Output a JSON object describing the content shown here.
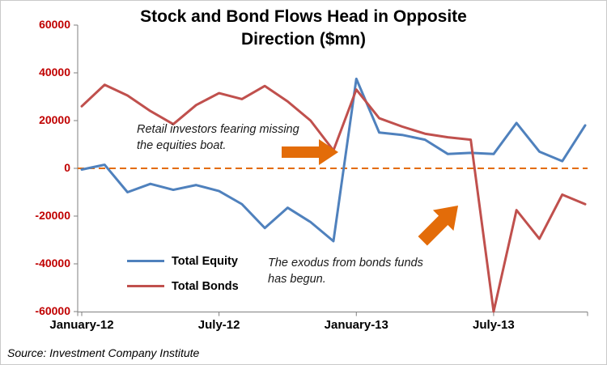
{
  "title_line1": "Stock and Bond Flows Head in Opposite",
  "title_line2": "Direction ($mn)",
  "source": "Source: Investment Company Institute",
  "colors": {
    "equity_line": "#4F81BD",
    "bonds_line": "#C0504D",
    "accent_orange": "#E36C09",
    "y_axis_label": "#C00000",
    "axis": "#7F7F7F",
    "text": "#000000"
  },
  "chart_data": {
    "type": "line",
    "title": "Stock and Bond Flows Head in Opposite Direction ($mn)",
    "xlabel": "",
    "ylabel": "",
    "ylim": [
      -60000,
      60000
    ],
    "y_ticks": [
      60000,
      40000,
      20000,
      0,
      -20000,
      -40000,
      -60000
    ],
    "grid": "off",
    "legend_position": "inside-lower-left",
    "x": [
      "Jan-12",
      "Feb-12",
      "Mar-12",
      "Apr-12",
      "May-12",
      "Jun-12",
      "Jul-12",
      "Aug-12",
      "Sep-12",
      "Oct-12",
      "Nov-12",
      "Dec-12",
      "Jan-13",
      "Feb-13",
      "Mar-13",
      "Apr-13",
      "May-13",
      "Jun-13",
      "Jul-13",
      "Aug-13",
      "Sep-13",
      "Oct-13",
      "Nov-13"
    ],
    "x_tick_positions": [
      0,
      6,
      12,
      18
    ],
    "x_tick_labels": [
      "January-12",
      "July-12",
      "January-13",
      "July-13"
    ],
    "series": [
      {
        "name": "Total Equity",
        "color": "#4F81BD",
        "values": [
          -500,
          1500,
          -10000,
          -6500,
          -9000,
          -7000,
          -9500,
          -15000,
          -25000,
          -16500,
          -22500,
          -30500,
          37500,
          15000,
          14000,
          12000,
          6000,
          6500,
          6000,
          19000,
          7000,
          3000,
          18000
        ]
      },
      {
        "name": "Total Bonds",
        "color": "#C0504D",
        "values": [
          26000,
          35000,
          30500,
          24000,
          18500,
          26500,
          31500,
          29000,
          34500,
          28000,
          20000,
          7500,
          33000,
          21000,
          17500,
          14500,
          13000,
          12000,
          -60000,
          -17500,
          -29500,
          -11000,
          -15000
        ]
      }
    ],
    "zero_line": {
      "color": "#E36C09",
      "style": "dashed",
      "y": 0
    },
    "annotations": [
      {
        "type": "text",
        "text": "Retail investors fearing missing the equities boat.",
        "line1": "Retail investors fearing missing",
        "line2": "the equities boat."
      },
      {
        "type": "text",
        "text": "The exodus from bonds funds has begun.",
        "line1": "The exodus from bonds funds",
        "line2": "has begun."
      },
      {
        "type": "arrow",
        "direction": "right",
        "color": "#E36C09"
      },
      {
        "type": "arrow",
        "direction": "up-right",
        "color": "#E36C09"
      }
    ]
  }
}
